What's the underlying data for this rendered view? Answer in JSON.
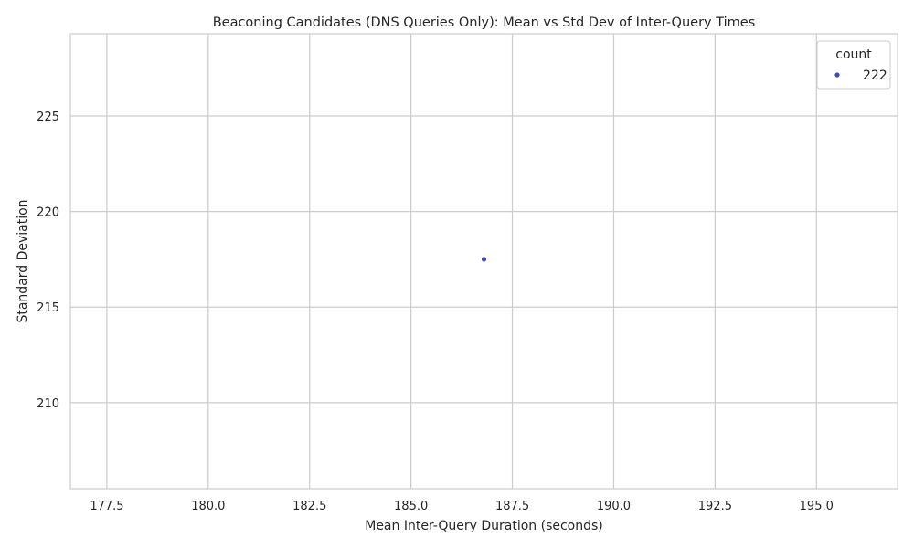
{
  "chart_data": {
    "type": "scatter",
    "title": "Beaconing Candidates (DNS Queries Only): Mean vs Std Dev of Inter-Query Times",
    "xlabel": "Mean Inter-Query Duration (seconds)",
    "ylabel": "Standard Deviation",
    "xlim": [
      176.6,
      197.0
    ],
    "ylim": [
      205.5,
      229.3
    ],
    "xticks": [
      177.5,
      180.0,
      182.5,
      185.0,
      187.5,
      190.0,
      192.5,
      195.0
    ],
    "xtick_labels": [
      "177.5",
      "180.0",
      "182.5",
      "185.0",
      "187.5",
      "190.0",
      "192.5",
      "195.0"
    ],
    "yticks": [
      210,
      215,
      220,
      225
    ],
    "ytick_labels": [
      "210",
      "215",
      "220",
      "225"
    ],
    "grid": true,
    "legend": {
      "title": "count",
      "placement": "top-right",
      "entries": [
        {
          "label": "222",
          "color": "#3b4cc0"
        }
      ]
    },
    "series": [
      {
        "label": "222",
        "color": "#3b4cc0",
        "points": [
          {
            "x": 186.8,
            "y": 217.5
          }
        ]
      }
    ]
  }
}
